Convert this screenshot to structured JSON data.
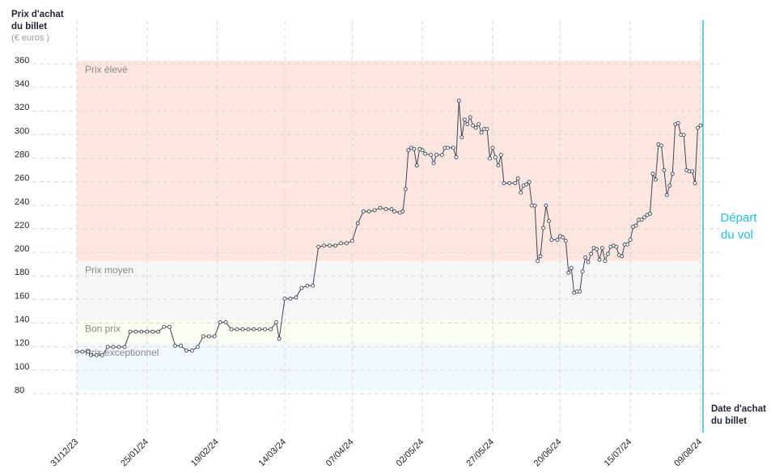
{
  "chart_data": {
    "type": "line",
    "y_label": [
      "Prix d'achat",
      "du billet"
    ],
    "y_unit": "(€ euros )",
    "x_label": [
      "Date d'achat",
      "du billet"
    ],
    "annotation": [
      "Départ",
      "du vol"
    ],
    "bands": [
      {
        "name": "Prix élevé",
        "from": 190,
        "to": 360,
        "color": "#fde6e0"
      },
      {
        "name": "Prix moyen",
        "from": 140,
        "to": 190,
        "color": "#f6f6f8"
      },
      {
        "name": "Bon prix",
        "from": 120,
        "to": 140,
        "color": "#fcfcf0"
      },
      {
        "name": "Prix exceptionnel",
        "from": 80,
        "to": 120,
        "color": "#f1f8fc"
      }
    ],
    "color": "#3c4456",
    "ylim": [
      80,
      360
    ],
    "yticks": [
      80,
      100,
      120,
      140,
      160,
      180,
      200,
      220,
      240,
      260,
      280,
      300,
      320,
      340,
      360
    ],
    "xlim": [
      0,
      222
    ],
    "xticks": [
      {
        "value": 0,
        "label": "31/12/23"
      },
      {
        "value": 25,
        "label": "25/01/24"
      },
      {
        "value": 50,
        "label": "19/02/24"
      },
      {
        "value": 74,
        "label": "14/03/24"
      },
      {
        "value": 98,
        "label": "07/04/24"
      },
      {
        "value": 123,
        "label": "02/05/24"
      },
      {
        "value": 148,
        "label": "27/05/24"
      },
      {
        "value": 172,
        "label": "20/06/24"
      },
      {
        "value": 197,
        "label": "15/07/24"
      },
      {
        "value": 222,
        "label": "09/08/24"
      }
    ],
    "x": [
      0,
      2,
      4,
      5,
      7,
      9,
      11,
      13,
      15,
      17,
      19,
      21,
      23,
      25,
      27,
      29,
      31,
      33,
      35,
      37,
      39,
      41,
      43,
      45,
      47,
      49,
      51,
      53,
      55,
      57,
      59,
      61,
      63,
      65,
      67,
      69,
      71,
      72,
      74,
      76,
      78,
      80,
      82,
      84,
      86,
      88,
      90,
      92,
      94,
      96,
      98,
      100,
      102,
      104,
      106,
      108,
      110,
      112,
      113,
      115,
      116,
      117,
      118,
      119,
      120,
      121,
      122,
      123,
      124,
      126,
      127,
      128,
      130,
      131,
      132,
      134,
      135,
      136,
      137,
      138,
      139,
      140,
      141,
      142,
      143,
      144,
      145,
      146,
      147,
      148,
      149,
      150,
      151,
      152,
      154,
      156,
      157,
      158,
      159,
      160,
      161,
      162,
      163,
      164,
      165,
      166,
      167,
      168,
      169,
      171,
      172,
      173,
      174,
      175,
      176,
      177,
      178,
      179,
      180,
      181,
      182,
      183,
      184,
      185,
      186,
      187,
      188,
      189,
      190,
      191,
      192,
      193,
      194,
      195,
      196,
      197,
      198,
      199,
      200,
      201,
      202,
      203,
      204,
      205,
      206,
      207,
      208,
      209,
      210,
      211,
      212,
      213,
      214,
      215,
      216,
      217,
      218,
      219,
      220,
      221,
      222
    ],
    "values": [
      113,
      113,
      113,
      110,
      110,
      110,
      117,
      117,
      117,
      117,
      130,
      130,
      130,
      130,
      130,
      130,
      134,
      134,
      118,
      118,
      114,
      114,
      117,
      126,
      126,
      126,
      138,
      138,
      132,
      132,
      132,
      132,
      132,
      132,
      132,
      132,
      138,
      124,
      158,
      158,
      159,
      167,
      169,
      169,
      202,
      203,
      203,
      203,
      205,
      205,
      207,
      222,
      232,
      232,
      233,
      235,
      234,
      234,
      232,
      231,
      232,
      251,
      284,
      286,
      285,
      271,
      285,
      284,
      281,
      280,
      273,
      280,
      280,
      286,
      286,
      286,
      278,
      326,
      295,
      310,
      306,
      312,
      305,
      303,
      306,
      299,
      302,
      302,
      277,
      286,
      278,
      271,
      280,
      256,
      256,
      256,
      260,
      248,
      254,
      255,
      257,
      237,
      237,
      190,
      194,
      218,
      237,
      224,
      208,
      208,
      211,
      210,
      207,
      180,
      184,
      163,
      164,
      164,
      181,
      193,
      189,
      196,
      201,
      200,
      191,
      201,
      190,
      196,
      202,
      203,
      202,
      195,
      194,
      204,
      204,
      208,
      219,
      220,
      225,
      225,
      227,
      229,
      230,
      264,
      259,
      289,
      288,
      267,
      246,
      254,
      264,
      306,
      307,
      297,
      297,
      267,
      266,
      266,
      256,
      303,
      305
    ]
  }
}
